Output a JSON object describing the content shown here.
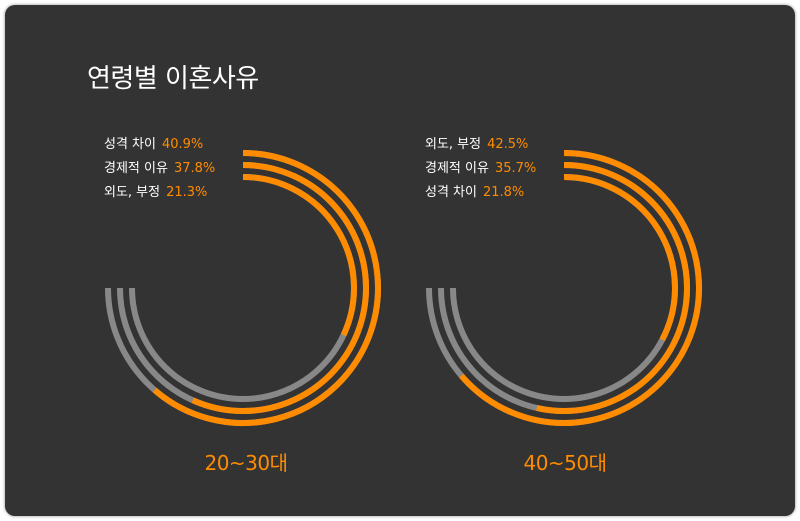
{
  "chart_data": {
    "type": "radial-bar",
    "title": "연령별 이혼사유",
    "colors": {
      "value": "#FF8C00",
      "track": "#888888",
      "background": "#333333"
    },
    "groups": [
      {
        "label": "20~30대",
        "series": [
          {
            "name": "성격 차이",
            "value": 40.9,
            "display": "40.9%"
          },
          {
            "name": "경제적 이유",
            "value": 37.8,
            "display": "37.8%"
          },
          {
            "name": "외도, 부정",
            "value": 21.3,
            "display": "21.3%"
          }
        ]
      },
      {
        "label": "40~50대",
        "series": [
          {
            "name": "외도, 부정",
            "value": 42.5,
            "display": "42.5%"
          },
          {
            "name": "경제적 이유",
            "value": 35.7,
            "display": "35.7%"
          },
          {
            "name": "성격 차이",
            "value": 21.8,
            "display": "21.8%"
          }
        ]
      }
    ]
  }
}
